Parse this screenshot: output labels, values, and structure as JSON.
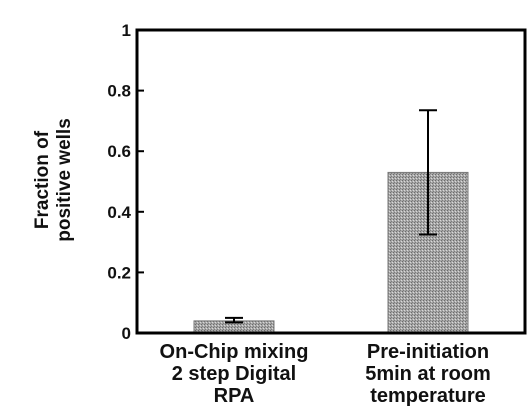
{
  "chart_data": {
    "type": "bar",
    "title": "",
    "xlabel": "",
    "ylabel": [
      "Fraction of",
      "positive wells"
    ],
    "ylim": [
      0,
      1
    ],
    "yticks": [
      {
        "value": 0,
        "label": "0"
      },
      {
        "value": 0.2,
        "label": "0.2"
      },
      {
        "value": 0.4,
        "label": "0.4"
      },
      {
        "value": 0.6,
        "label": "0.6"
      },
      {
        "value": 0.8,
        "label": "0.8"
      },
      {
        "value": 1,
        "label": "1"
      }
    ],
    "categories": [
      [
        "On-Chip mixing",
        "2 step Digital",
        "RPA"
      ],
      [
        "Pre-initiation",
        "5min at room",
        "temperature"
      ]
    ],
    "values": [
      0.04,
      0.53
    ],
    "error": [
      {
        "low": 0.035,
        "high": 0.05
      },
      {
        "low": 0.325,
        "high": 0.735
      }
    ],
    "grid": false,
    "colors": {
      "bar": "#9a9a9a",
      "axis": "#000000",
      "text": "#111111"
    }
  }
}
